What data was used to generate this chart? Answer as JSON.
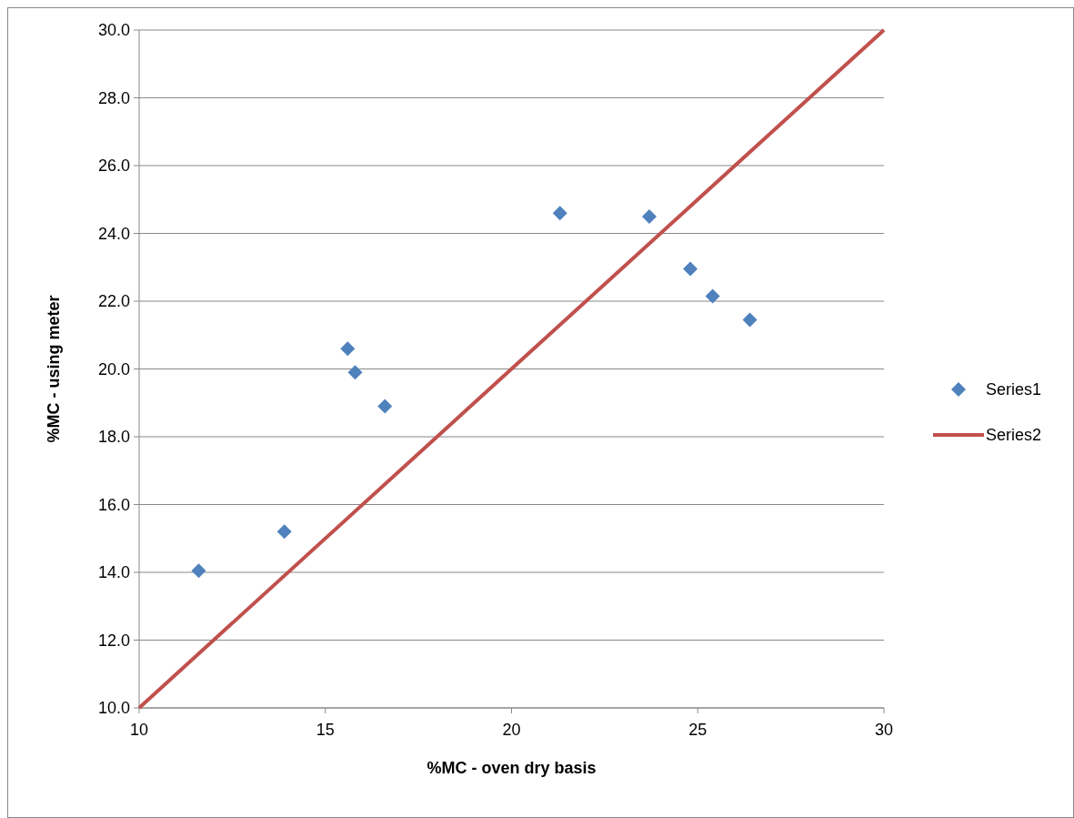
{
  "chart_data": {
    "type": "scatter",
    "xlabel": "%MC - oven dry basis",
    "ylabel": "%MC - using meter",
    "xlim": [
      10,
      30
    ],
    "xticks": [
      10,
      15,
      20,
      25,
      30
    ],
    "ylim": [
      10,
      30
    ],
    "yticks": [
      {
        "value": 10,
        "label": "10.0"
      },
      {
        "value": 12,
        "label": "12.0"
      },
      {
        "value": 14,
        "label": "14.0"
      },
      {
        "value": 16,
        "label": "16.0"
      },
      {
        "value": 18,
        "label": "18.0"
      },
      {
        "value": 20,
        "label": "20.0"
      },
      {
        "value": 22,
        "label": "22.0"
      },
      {
        "value": 24,
        "label": "24.0"
      },
      {
        "value": 26,
        "label": "26.0"
      },
      {
        "value": 28,
        "label": "28.0"
      },
      {
        "value": 30,
        "label": "30.0"
      }
    ],
    "grid": "y",
    "legend": "right",
    "series": [
      {
        "name": "Series1",
        "marker": "diamond",
        "color": "#4f81bd",
        "x": [
          11.6,
          13.9,
          15.6,
          15.8,
          16.6,
          21.3,
          23.7,
          24.8,
          25.4,
          26.4
        ],
        "values": [
          14.05,
          15.2,
          20.6,
          19.9,
          18.9,
          24.6,
          24.5,
          22.95,
          22.15,
          21.45
        ]
      },
      {
        "name": "Series2",
        "type": "line",
        "marker": "none",
        "color": "#c0504d",
        "x": [
          10,
          30
        ],
        "values": [
          10,
          30
        ]
      }
    ]
  }
}
